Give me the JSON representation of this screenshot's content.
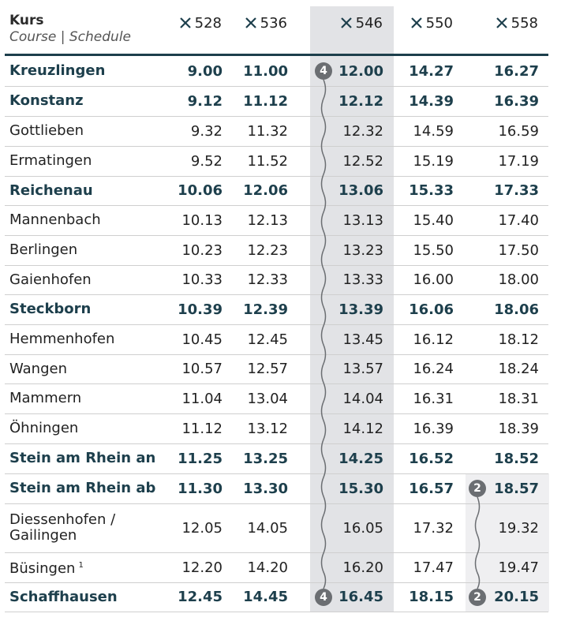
{
  "header": {
    "title": "Kurs",
    "subtitle": "Course | Schedule",
    "columns": [
      "528",
      "536",
      "546",
      "550",
      "558"
    ]
  },
  "connection_badges": {
    "col_546": "4",
    "col_558": "2"
  },
  "rows": [
    {
      "stop": "Kreuzlingen",
      "major": true,
      "times": [
        "9.00",
        "11.00",
        "12.00",
        "14.27",
        "16.27"
      ]
    },
    {
      "stop": "Konstanz",
      "major": true,
      "times": [
        "9.12",
        "11.12",
        "12.12",
        "14.39",
        "16.39"
      ]
    },
    {
      "stop": "Gottlieben",
      "major": false,
      "times": [
        "9.32",
        "11.32",
        "12.32",
        "14.59",
        "16.59"
      ]
    },
    {
      "stop": "Ermatingen",
      "major": false,
      "times": [
        "9.52",
        "11.52",
        "12.52",
        "15.19",
        "17.19"
      ]
    },
    {
      "stop": "Reichenau",
      "major": true,
      "times": [
        "10.06",
        "12.06",
        "13.06",
        "15.33",
        "17.33"
      ]
    },
    {
      "stop": "Mannenbach",
      "major": false,
      "times": [
        "10.13",
        "12.13",
        "13.13",
        "15.40",
        "17.40"
      ]
    },
    {
      "stop": "Berlingen",
      "major": false,
      "times": [
        "10.23",
        "12.23",
        "13.23",
        "15.50",
        "17.50"
      ]
    },
    {
      "stop": "Gaienhofen",
      "major": false,
      "times": [
        "10.33",
        "12.33",
        "13.33",
        "16.00",
        "18.00"
      ]
    },
    {
      "stop": "Steckborn",
      "major": true,
      "times": [
        "10.39",
        "12.39",
        "13.39",
        "16.06",
        "18.06"
      ]
    },
    {
      "stop": "Hemmenhofen",
      "major": false,
      "times": [
        "10.45",
        "12.45",
        "13.45",
        "16.12",
        "18.12"
      ]
    },
    {
      "stop": "Wangen",
      "major": false,
      "times": [
        "10.57",
        "12.57",
        "13.57",
        "16.24",
        "18.24"
      ]
    },
    {
      "stop": "Mammern",
      "major": false,
      "times": [
        "11.04",
        "13.04",
        "14.04",
        "16.31",
        "18.31"
      ]
    },
    {
      "stop": "Öhningen",
      "major": false,
      "times": [
        "11.12",
        "13.12",
        "14.12",
        "16.39",
        "18.39"
      ]
    },
    {
      "stop": "Stein am Rhein an",
      "major": true,
      "times": [
        "11.25",
        "13.25",
        "14.25",
        "16.52",
        "18.52"
      ]
    },
    {
      "stop": "Stein am Rhein ab",
      "major": true,
      "times": [
        "11.30",
        "13.30",
        "15.30",
        "16.57",
        "18.57"
      ]
    },
    {
      "stop": "Diessenhofen /",
      "stop_line2": "Gailingen",
      "major": false,
      "times": [
        "12.05",
        "14.05",
        "16.05",
        "17.32",
        "19.32"
      ]
    },
    {
      "stop": "Büsingen",
      "footnote": "1",
      "major": false,
      "times": [
        "12.20",
        "14.20",
        "16.20",
        "17.47",
        "19.47"
      ]
    },
    {
      "stop": "Schaffhausen",
      "major": true,
      "times": [
        "12.45",
        "14.45",
        "16.45",
        "18.15",
        "20.15"
      ]
    }
  ]
}
